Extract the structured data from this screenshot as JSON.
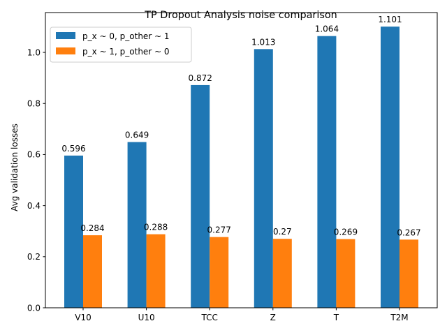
{
  "chart_data": {
    "type": "bar",
    "title": "TP Dropout Analysis noise comparison",
    "xlabel": "",
    "ylabel": "Avg validation losses",
    "categories": [
      "V10",
      "U10",
      "TCC",
      "Z",
      "T",
      "T2M"
    ],
    "series": [
      {
        "name": "p_x ~ 0, p_other ~ 1",
        "color": "#1f77b4",
        "values": [
          0.596,
          0.649,
          0.872,
          1.013,
          1.064,
          1.101
        ]
      },
      {
        "name": "p_x ~ 1, p_other ~ 0",
        "color": "#ff7f0e",
        "values": [
          0.284,
          0.288,
          0.277,
          0.27,
          0.269,
          0.267
        ]
      }
    ],
    "ylim": [
      0,
      1.156
    ],
    "yticks": [
      "0.0",
      "0.2",
      "0.4",
      "0.6",
      "0.8",
      "1.0"
    ],
    "grid": false,
    "legend_position": "top-left"
  }
}
